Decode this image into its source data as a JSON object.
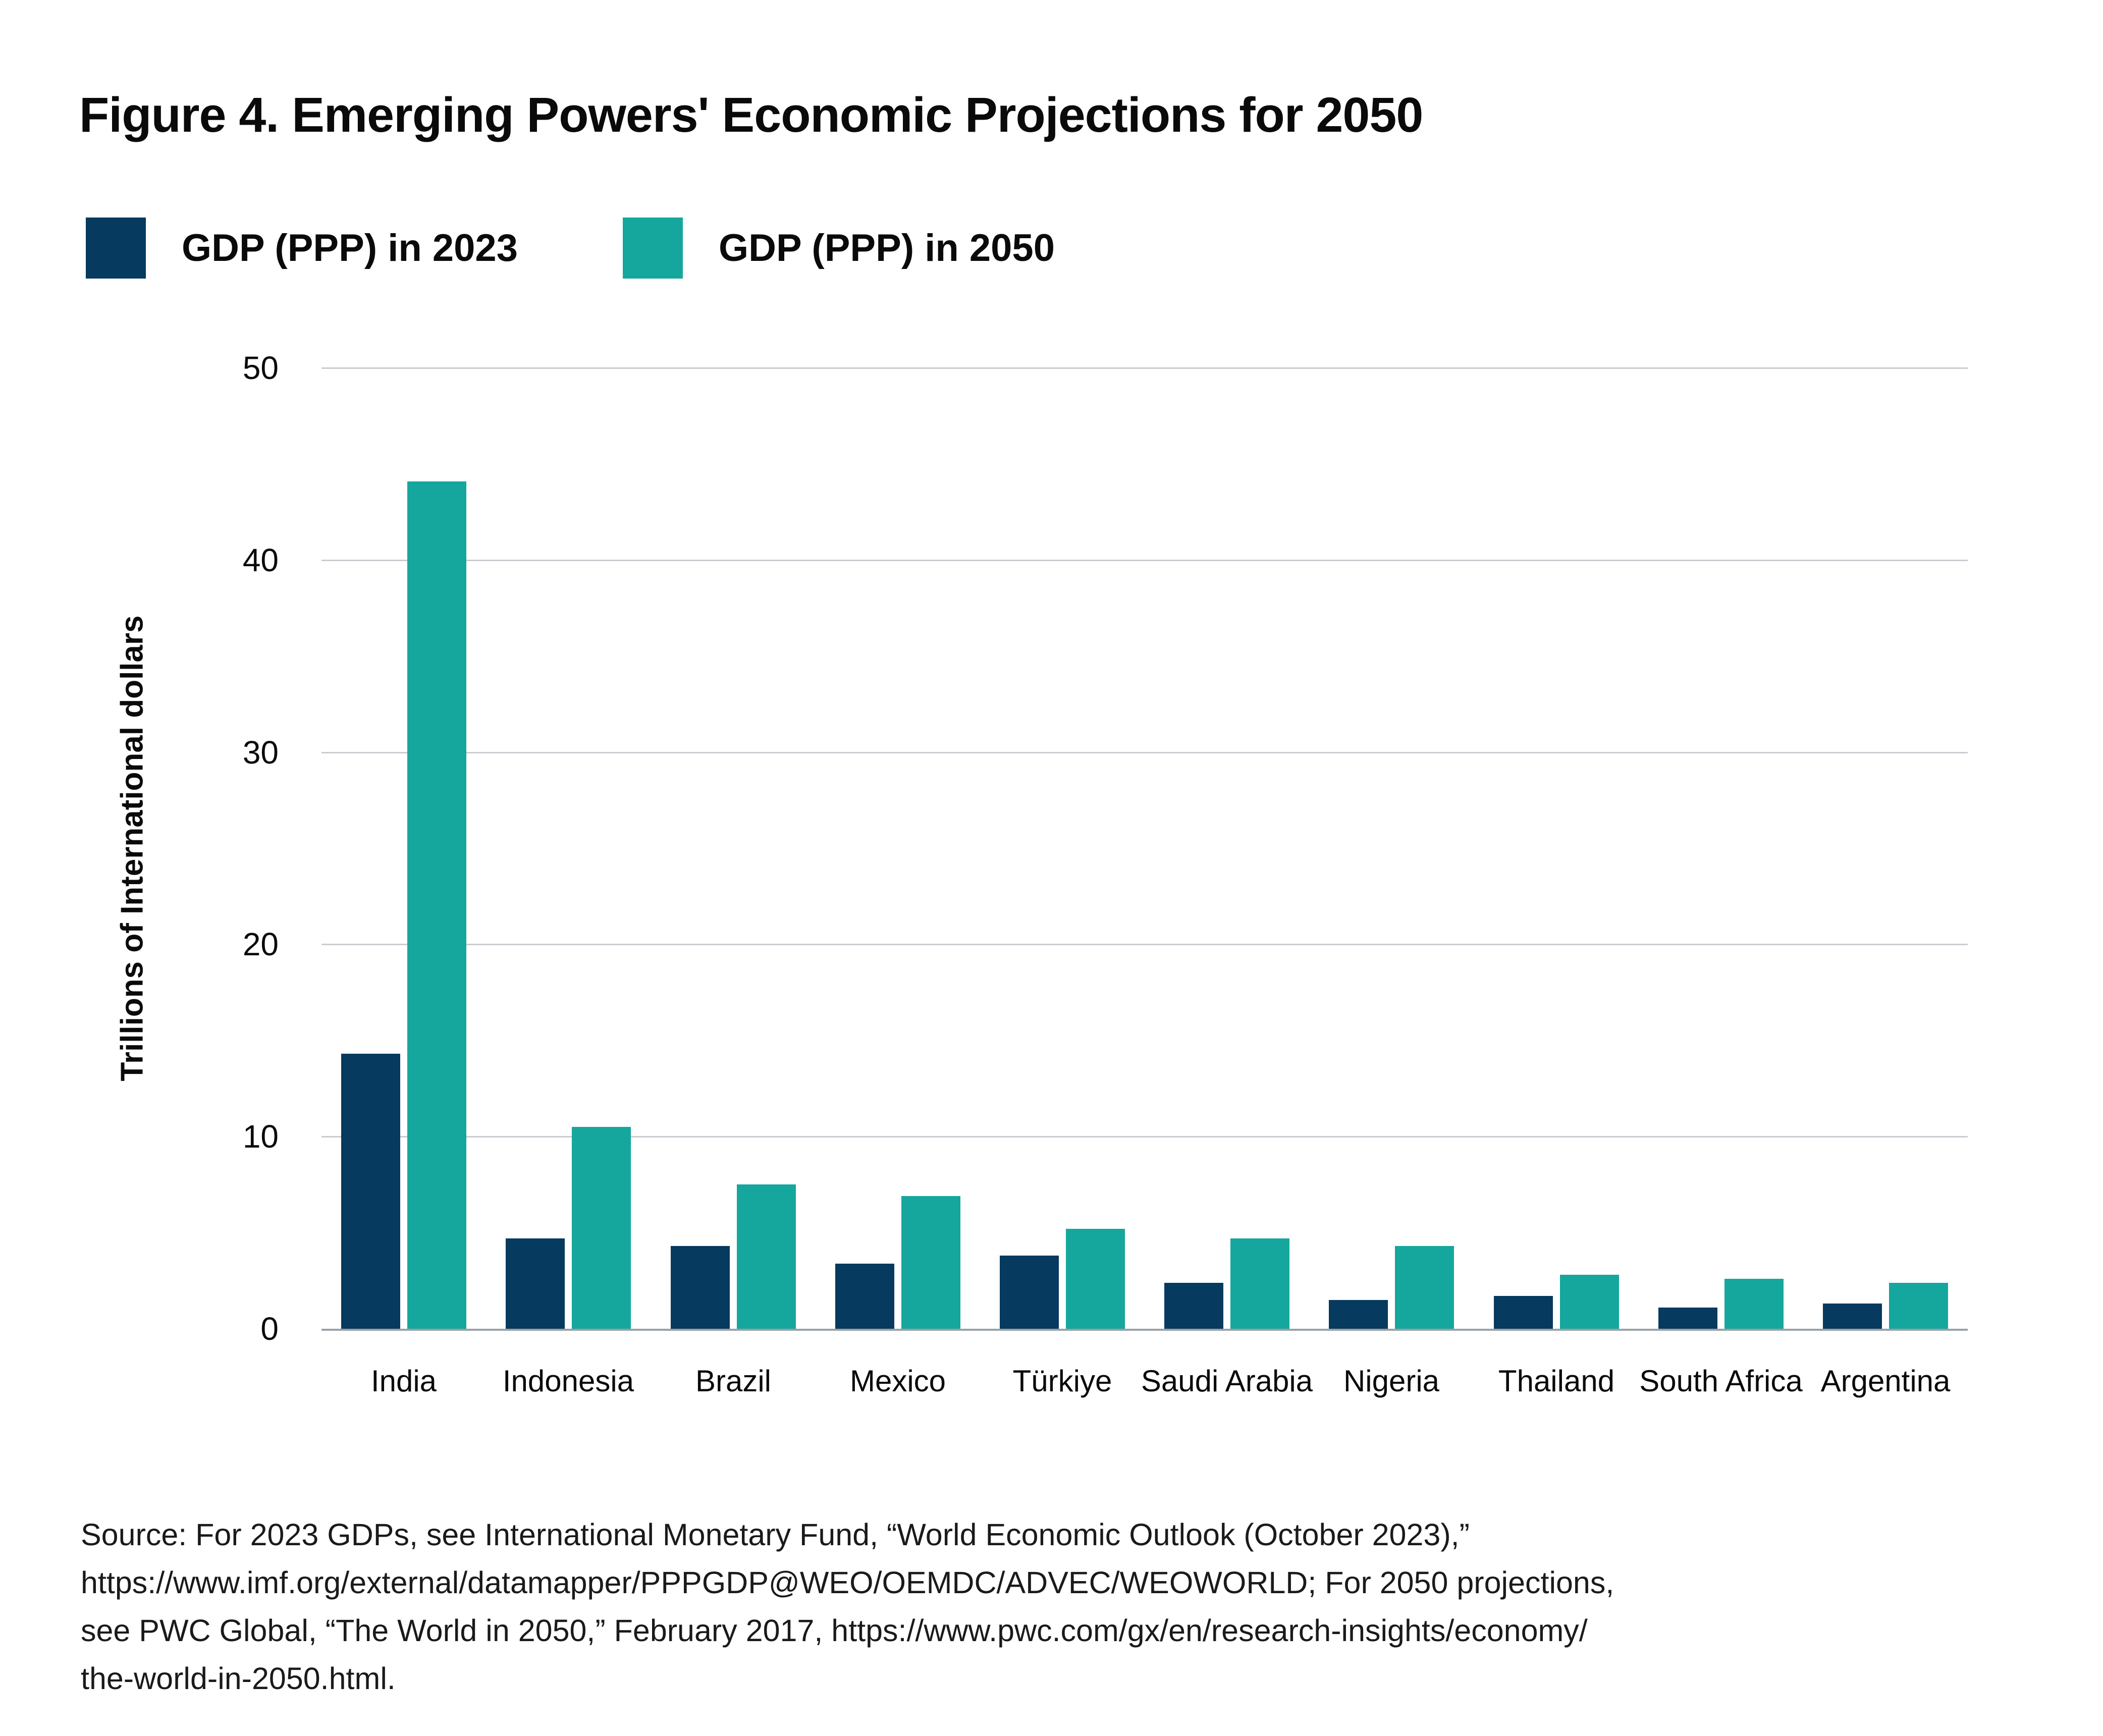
{
  "figure": {
    "title": "Figure 4. Emerging Powers' Economic Projections for 2050",
    "source_lines": [
      "Source: For 2023 GDPs, see International Monetary Fund, “World Economic Outlook (October 2023),”",
      "https://www.imf.org/external/datamapper/PPPGDP@WEO/OEMDC/ADVEC/WEOWORLD; For 2050 projections,",
      "see PWC Global, “The World in 2050,” February 2017, https://www.pwc.com/gx/en/research-insights/economy/",
      "the-world-in-2050.html."
    ]
  },
  "colors": {
    "series_2023": "#063a5f",
    "series_2050": "#15a79d",
    "gridline": "#c9cdd1",
    "baseline": "#9aa1a6"
  },
  "chart_data": {
    "type": "bar",
    "title": "Figure 4. Emerging Powers' Economic Projections for 2050",
    "categories": [
      "India",
      "Indonesia",
      "Brazil",
      "Mexico",
      "Türkiye",
      "Saudi Arabia",
      "Nigeria",
      "Thailand",
      "South Africa",
      "Argentina"
    ],
    "series": [
      {
        "name": "GDP (PPP) in 2023",
        "color": "#063a5f",
        "values": [
          14.3,
          4.7,
          4.3,
          3.4,
          3.8,
          2.4,
          1.5,
          1.7,
          1.1,
          1.3
        ]
      },
      {
        "name": "GDP (PPP) in 2050",
        "color": "#15a79d",
        "values": [
          44.1,
          10.5,
          7.5,
          6.9,
          5.2,
          4.7,
          4.3,
          2.8,
          2.6,
          2.4
        ]
      }
    ],
    "xlabel": "",
    "ylabel": "Trillions of International dollars",
    "ylim": [
      0,
      50
    ],
    "yticks": [
      0,
      10,
      20,
      30,
      40,
      50
    ],
    "grid": true,
    "legend_position": "top-left",
    "units": "trillions of international dollars"
  }
}
